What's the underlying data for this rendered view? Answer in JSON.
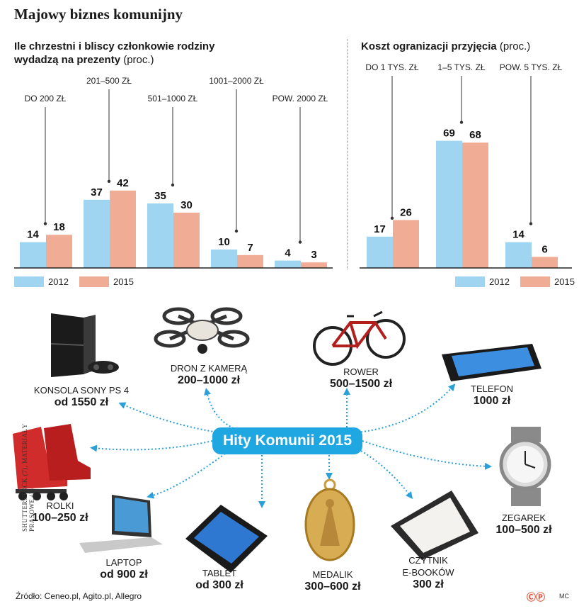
{
  "title": "Majowy biznes komunijny",
  "chart_data": [
    {
      "type": "bar",
      "title": "Ile chrzestni i bliscy członkowie rodziny wydadzą na prezenty",
      "title_line1": "Ile chrzestni i bliscy członkowie rodziny",
      "title_line2": "wydadzą na prezenty",
      "unit": "(proc.)",
      "categories": [
        "DO 200 ZŁ",
        "201–500 ZŁ",
        "501–1000 ZŁ",
        "1001–2000 ZŁ",
        "POW. 2000 ZŁ"
      ],
      "series": [
        {
          "name": "2012",
          "values": [
            14,
            37,
            35,
            10,
            4
          ]
        },
        {
          "name": "2015",
          "values": [
            18,
            42,
            30,
            7,
            3
          ]
        }
      ],
      "ylim": [
        0,
        100
      ]
    },
    {
      "type": "bar",
      "title": "Koszt ogranizacji przyjęcia",
      "unit": "(proc.)",
      "categories": [
        "DO 1 TYS. ZŁ",
        "1–5 TYS. ZŁ",
        "POW. 5 TYS. ZŁ"
      ],
      "series": [
        {
          "name": "2012",
          "values": [
            17,
            69,
            14
          ]
        },
        {
          "name": "2015",
          "values": [
            26,
            68,
            6
          ]
        }
      ],
      "ylim": [
        0,
        100
      ]
    }
  ],
  "colors": {
    "s2012": "#9fd5f1",
    "s2015": "#f0ac94",
    "hub": "#1fa7e1",
    "arrow": "#2a9fd8"
  },
  "hub_label": "Hity Komunii 2015",
  "items": [
    {
      "id": "konsola",
      "name": "KONSOLA SONY PS 4",
      "price": "od 1550 zł"
    },
    {
      "id": "dron",
      "name": "DRON Z KAMERĄ",
      "price": "200–1000 zł"
    },
    {
      "id": "rower",
      "name": "ROWER",
      "price": "500–1500 zł"
    },
    {
      "id": "telefon",
      "name": "TELEFON",
      "price": "1000 zł"
    },
    {
      "id": "rolki",
      "name": "ROLKI",
      "price": "100–250 zł"
    },
    {
      "id": "laptop",
      "name": "LAPTOP",
      "price": "od 900 zł"
    },
    {
      "id": "tablet",
      "name": "TABLET",
      "price": "od 300 zł"
    },
    {
      "id": "medalik",
      "name": "MEDALIK",
      "price": "300–600 zł"
    },
    {
      "id": "czytnik",
      "name_line1": "CZYTNIK",
      "name_line2": "E-BOOKÓW",
      "price": "300 zł"
    },
    {
      "id": "zegarek",
      "name": "ZEGAREK",
      "price": "100–500 zł"
    }
  ],
  "credit": "SHUTTERSTOCK (7), MATERIAŁY PRASOWE (3)",
  "source": "Źródło: Ceneo.pl, Agito.pl, Allegro",
  "logo": "ⒸⓅ",
  "author": "MC"
}
